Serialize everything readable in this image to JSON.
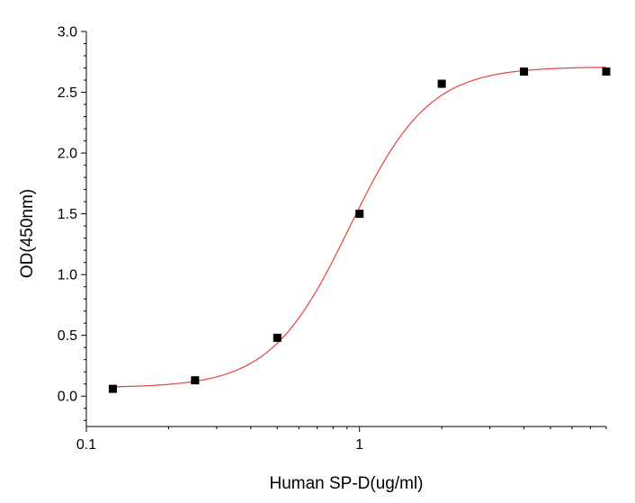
{
  "chart_data": {
    "type": "scatter",
    "xlabel": "Human SP-D(ug/ml)",
    "ylabel": "OD(450nm)",
    "x_scale": "log",
    "xlim": [
      0.1,
      8.0
    ],
    "ylim": [
      -0.25,
      3.0
    ],
    "x_ticks": [
      {
        "value": 0.1,
        "label": "0.1"
      },
      {
        "value": 1,
        "label": "1"
      }
    ],
    "y_ticks": [
      {
        "value": 0.0,
        "label": "0.0"
      },
      {
        "value": 0.5,
        "label": "0.5"
      },
      {
        "value": 1.0,
        "label": "1.0"
      },
      {
        "value": 1.5,
        "label": "1.5"
      },
      {
        "value": 2.0,
        "label": "2.0"
      },
      {
        "value": 2.5,
        "label": "2.5"
      },
      {
        "value": 3.0,
        "label": "3.0"
      }
    ],
    "grid": false,
    "legend": "none",
    "series": [
      {
        "marker": "square",
        "color": "#000000",
        "points": [
          {
            "x": 0.125,
            "y": 0.06
          },
          {
            "x": 0.25,
            "y": 0.13
          },
          {
            "x": 0.5,
            "y": 0.48
          },
          {
            "x": 1.0,
            "y": 1.5
          },
          {
            "x": 2.0,
            "y": 2.57
          },
          {
            "x": 4.0,
            "y": 2.67
          },
          {
            "x": 8.0,
            "y": 2.67
          }
        ]
      }
    ],
    "fit_curve": {
      "model": "four-parameter logistic",
      "color": "#e8403c",
      "bottom": 0.07,
      "top": 2.71,
      "ec50": 0.92,
      "hill_slope": 3.0
    }
  }
}
